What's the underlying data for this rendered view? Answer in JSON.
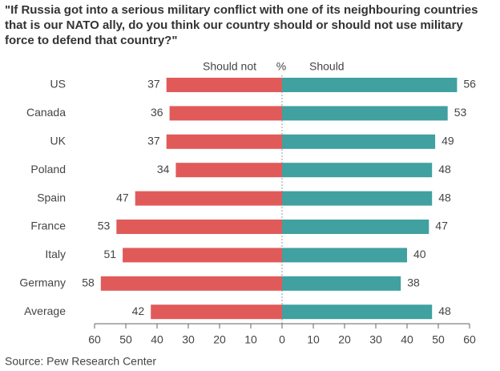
{
  "chart_data": {
    "type": "diverging-bar",
    "title": "\"If Russia got into a serious military conflict with one of its neighbouring countries that is our NATO ally, do you think our country should or should not use military force to defend that country?\"",
    "unit": "%",
    "source": "Source: Pew Research Center",
    "categories": [
      "US",
      "Canada",
      "UK",
      "Poland",
      "Spain",
      "France",
      "Italy",
      "Germany",
      "Average"
    ],
    "series": [
      {
        "name": "Should not",
        "color": "#e05a5a",
        "side": "left",
        "values": [
          37,
          36,
          37,
          34,
          47,
          53,
          51,
          58,
          42
        ]
      },
      {
        "name": "Should",
        "color": "#41a0a0",
        "side": "right",
        "values": [
          56,
          53,
          49,
          48,
          48,
          47,
          40,
          38,
          48
        ]
      }
    ],
    "xlim": [
      -60,
      60
    ],
    "xticks": [
      {
        "value": -60,
        "label": "60"
      },
      {
        "value": -50,
        "label": "50"
      },
      {
        "value": -40,
        "label": "40"
      },
      {
        "value": -30,
        "label": "30"
      },
      {
        "value": -20,
        "label": "20"
      },
      {
        "value": -10,
        "label": "10"
      },
      0,
      10,
      20,
      30,
      40,
      50,
      60
    ]
  }
}
